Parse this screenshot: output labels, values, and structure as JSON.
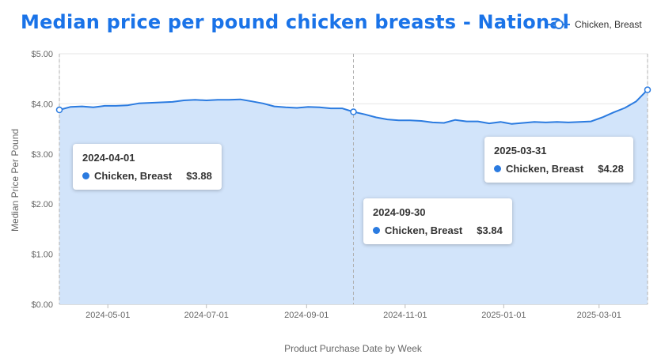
{
  "chart_data": {
    "type": "area",
    "title": "Median price per pound chicken breasts - National",
    "xlabel": "Product Purchase Date by Week",
    "ylabel": "Median Price Per Pound",
    "ylim": [
      0,
      5
    ],
    "yticks": [
      "$0.00",
      "$1.00",
      "$2.00",
      "$3.00",
      "$4.00",
      "$5.00"
    ],
    "xticks": [
      {
        "date": "2024-05-01",
        "label": "2024-05-01"
      },
      {
        "date": "2024-07-01",
        "label": "2024-07-01"
      },
      {
        "date": "2024-09-01",
        "label": "2024-09-01"
      },
      {
        "date": "2024-11-01",
        "label": "2024-11-01"
      },
      {
        "date": "2025-01-01",
        "label": "2025-01-01"
      },
      {
        "date": "2025-03-01",
        "label": "2025-03-01"
      }
    ],
    "xrange": [
      "2024-04-01",
      "2025-03-31"
    ],
    "legend_position": "top-right",
    "series": [
      {
        "name": "Chicken, Breast",
        "color": "#2b7be0",
        "fill": "#d2e4fa",
        "x": [
          "2024-04-01",
          "2024-04-08",
          "2024-04-15",
          "2024-04-22",
          "2024-04-29",
          "2024-05-06",
          "2024-05-13",
          "2024-05-20",
          "2024-05-27",
          "2024-06-03",
          "2024-06-10",
          "2024-06-17",
          "2024-06-24",
          "2024-07-01",
          "2024-07-08",
          "2024-07-15",
          "2024-07-22",
          "2024-07-29",
          "2024-08-05",
          "2024-08-12",
          "2024-08-19",
          "2024-08-26",
          "2024-09-02",
          "2024-09-09",
          "2024-09-16",
          "2024-09-23",
          "2024-09-30",
          "2024-10-07",
          "2024-10-14",
          "2024-10-21",
          "2024-10-28",
          "2024-11-04",
          "2024-11-11",
          "2024-11-18",
          "2024-11-25",
          "2024-12-02",
          "2024-12-09",
          "2024-12-16",
          "2024-12-23",
          "2024-12-30",
          "2025-01-06",
          "2025-01-13",
          "2025-01-20",
          "2025-01-27",
          "2025-02-03",
          "2025-02-10",
          "2025-02-17",
          "2025-02-24",
          "2025-03-03",
          "2025-03-10",
          "2025-03-17",
          "2025-03-24",
          "2025-03-31"
        ],
        "values": [
          3.88,
          3.94,
          3.95,
          3.93,
          3.96,
          3.96,
          3.97,
          4.01,
          4.02,
          4.03,
          4.04,
          4.07,
          4.08,
          4.07,
          4.08,
          4.08,
          4.09,
          4.05,
          4.01,
          3.95,
          3.93,
          3.92,
          3.94,
          3.93,
          3.91,
          3.91,
          3.84,
          3.79,
          3.73,
          3.69,
          3.67,
          3.67,
          3.66,
          3.63,
          3.62,
          3.68,
          3.65,
          3.65,
          3.61,
          3.64,
          3.6,
          3.62,
          3.64,
          3.63,
          3.64,
          3.63,
          3.64,
          3.65,
          3.73,
          3.83,
          3.92,
          4.05,
          4.28
        ]
      }
    ],
    "tooltips": [
      {
        "date": "2024-04-01",
        "series": "Chicken, Breast",
        "value": "$3.88"
      },
      {
        "date": "2024-09-30",
        "series": "Chicken, Breast",
        "value": "$3.84"
      },
      {
        "date": "2025-03-31",
        "series": "Chicken, Breast",
        "value": "$4.28"
      }
    ]
  }
}
